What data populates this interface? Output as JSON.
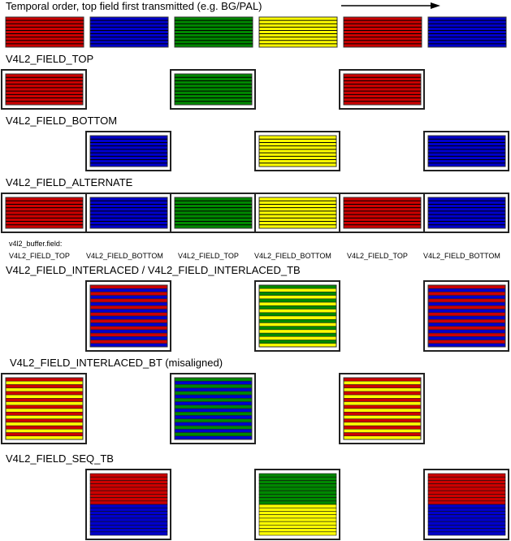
{
  "title": "Temporal order, top field first transmitted (e.g. BG/PAL)",
  "colors": {
    "red": "#cc0000",
    "blue": "#0000cc",
    "green": "#008800",
    "yellow": "#ffff00"
  },
  "sequence": [
    "red",
    "blue",
    "green",
    "yellow",
    "red",
    "blue"
  ],
  "sections": {
    "top": "V4L2_FIELD_TOP",
    "bottom": "V4L2_FIELD_BOTTOM",
    "alternate": "V4L2_FIELD_ALTERNATE",
    "interlaced": "V4L2_FIELD_INTERLACED / V4L2_FIELD_INTERLACED_TB",
    "interlaced_bt": "V4L2_FIELD_INTERLACED_BT (misaligned)",
    "seq_tb": "V4L2_FIELD_SEQ_TB"
  },
  "buffer_field": {
    "caption": "v4l2_buffer.field:",
    "values": [
      "V4L2_FIELD_TOP",
      "V4L2_FIELD_BOTTOM",
      "V4L2_FIELD_TOP",
      "V4L2_FIELD_BOTTOM",
      "V4L2_FIELD_TOP",
      "V4L2_FIELD_BOTTOM"
    ]
  }
}
